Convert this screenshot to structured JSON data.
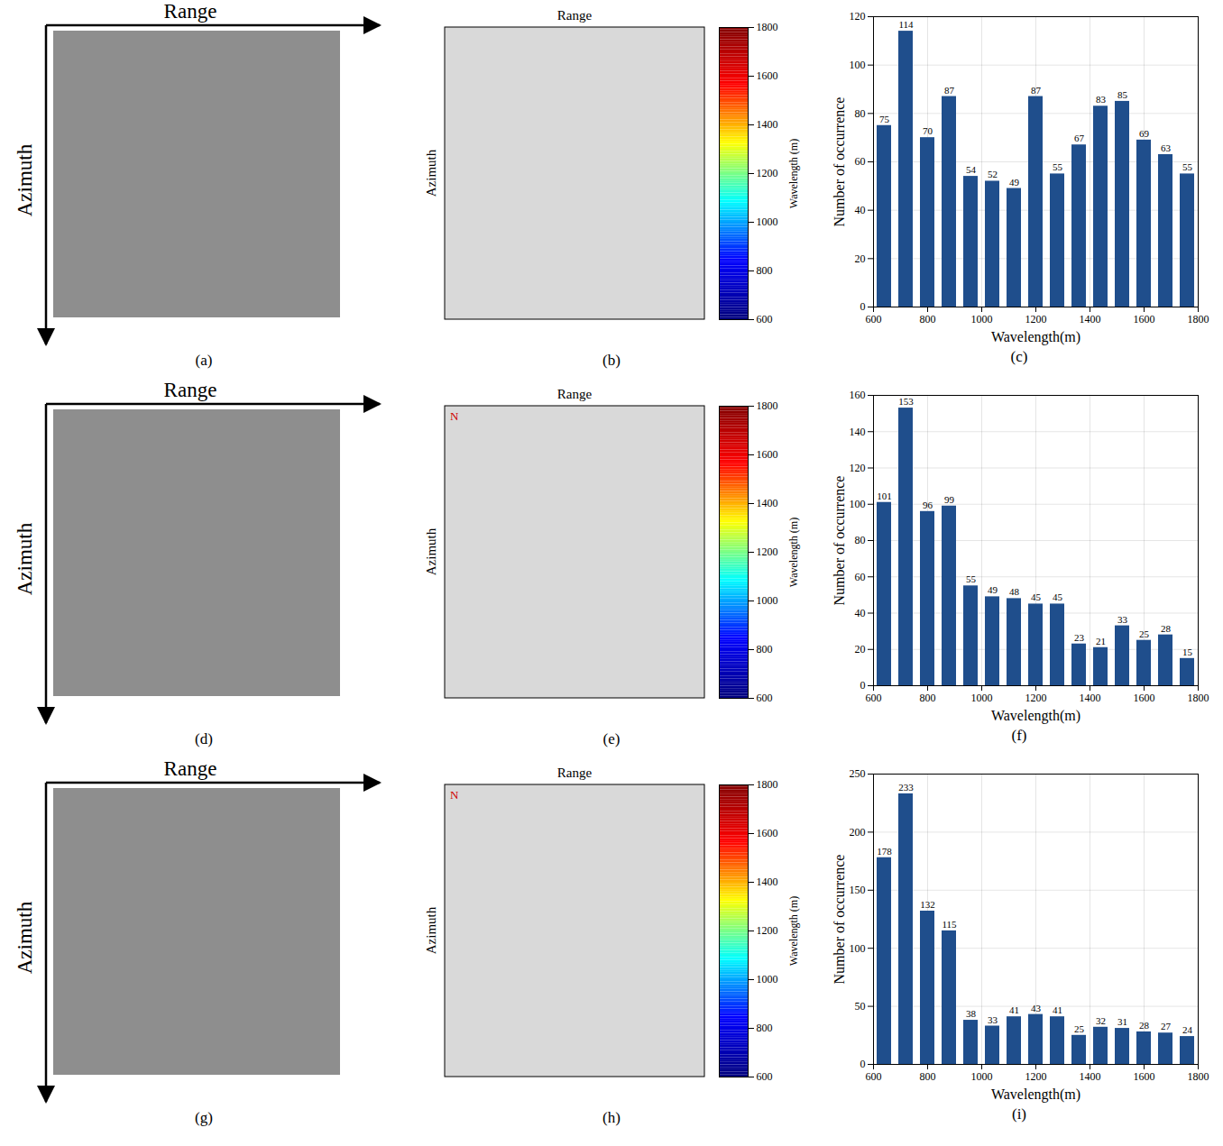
{
  "chart_data": [
    {
      "type": "image",
      "panel": "(a)",
      "x_label": "Range",
      "y_label": "Azimuth"
    },
    {
      "type": "heatmap",
      "panel": "(b)",
      "x_label": "Range",
      "y_label": "Azimuth",
      "colorbar": {
        "label": "Wavelength (m)",
        "range": [
          600,
          1800
        ],
        "ticks": [
          600,
          800,
          1000,
          1200,
          1400,
          1600,
          1800
        ]
      }
    },
    {
      "type": "bar",
      "panel": "(c)",
      "x_label": "Wavelength(m)",
      "y_label": "Number of occurrence",
      "bins": [
        600,
        680,
        760,
        840,
        920,
        1000,
        1080,
        1160,
        1240,
        1320,
        1400,
        1480,
        1560,
        1640,
        1720,
        1800
      ],
      "values": [
        75,
        114,
        70,
        87,
        54,
        52,
        49,
        87,
        55,
        67,
        83,
        85,
        69,
        63,
        55
      ],
      "color": "#1f4e8c",
      "xlim": [
        600,
        1800
      ],
      "xticks": [
        600,
        800,
        1000,
        1200,
        1400,
        1600,
        1800
      ],
      "ylim": [
        0,
        120
      ],
      "yticks": [
        0,
        20,
        40,
        60,
        80,
        100,
        120
      ],
      "grid": true,
      "data_labels": true
    },
    {
      "type": "image",
      "panel": "(d)",
      "x_label": "Range",
      "y_label": "Azimuth"
    },
    {
      "type": "heatmap",
      "panel": "(e)",
      "x_label": "Range",
      "y_label": "Azimuth",
      "annotations": [
        "N"
      ],
      "colorbar": {
        "label": "Wavelength (m)",
        "range": [
          600,
          1800
        ],
        "ticks": [
          600,
          800,
          1000,
          1200,
          1400,
          1600,
          1800
        ]
      }
    },
    {
      "type": "bar",
      "panel": "(f)",
      "x_label": "Wavelength(m)",
      "y_label": "Number of occurrence",
      "bins": [
        600,
        680,
        760,
        840,
        920,
        1000,
        1080,
        1160,
        1240,
        1320,
        1400,
        1480,
        1560,
        1640,
        1720,
        1800
      ],
      "values": [
        101,
        153,
        96,
        99,
        55,
        49,
        48,
        45,
        45,
        23,
        21,
        33,
        25,
        28,
        15
      ],
      "color": "#1f4e8c",
      "xlim": [
        600,
        1800
      ],
      "xticks": [
        600,
        800,
        1000,
        1200,
        1400,
        1600,
        1800
      ],
      "ylim": [
        0,
        160
      ],
      "yticks": [
        0,
        20,
        40,
        60,
        80,
        100,
        120,
        140,
        160
      ],
      "grid": true,
      "data_labels": true
    },
    {
      "type": "image",
      "panel": "(g)",
      "x_label": "Range",
      "y_label": "Azimuth"
    },
    {
      "type": "heatmap",
      "panel": "(h)",
      "x_label": "Range",
      "y_label": "Azimuth",
      "annotations": [
        "N"
      ],
      "colorbar": {
        "label": "Wavelength (m)",
        "range": [
          600,
          1800
        ],
        "ticks": [
          600,
          800,
          1000,
          1200,
          1400,
          1600,
          1800
        ]
      }
    },
    {
      "type": "bar",
      "panel": "(i)",
      "x_label": "Wavelength(m)",
      "y_label": "Number of occurrence",
      "bins": [
        600,
        680,
        760,
        840,
        920,
        1000,
        1080,
        1160,
        1240,
        1320,
        1400,
        1480,
        1560,
        1640,
        1720,
        1800
      ],
      "values": [
        178,
        233,
        132,
        115,
        38,
        33,
        41,
        43,
        41,
        25,
        32,
        31,
        28,
        27,
        24
      ],
      "color": "#1f4e8c",
      "xlim": [
        600,
        1800
      ],
      "xticks": [
        600,
        800,
        1000,
        1200,
        1400,
        1600,
        1800
      ],
      "ylim": [
        0,
        250
      ],
      "yticks": [
        0,
        50,
        100,
        150,
        200,
        250
      ],
      "grid": true,
      "data_labels": true
    }
  ]
}
